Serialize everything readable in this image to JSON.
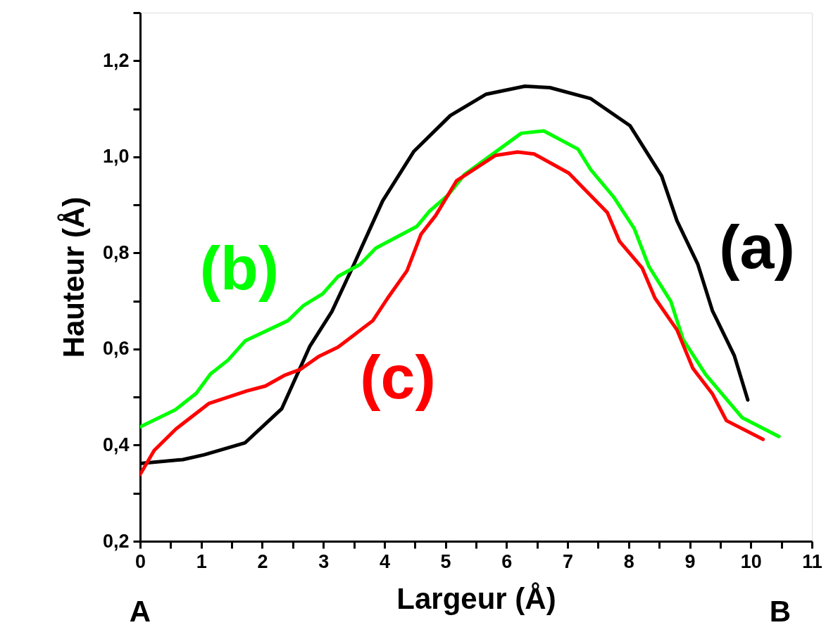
{
  "chart_data": {
    "type": "line",
    "xlabel": "Largeur (Å)",
    "ylabel": "Hauteur (Å)",
    "xlim": [
      0,
      11
    ],
    "ylim": [
      0.2,
      1.3
    ],
    "xticks": [
      0,
      {
        "value": 0.5,
        "label": null
      },
      1,
      {
        "value": 1.5,
        "label": null
      },
      2,
      {
        "value": 2.5,
        "label": null
      },
      3,
      {
        "value": 3.5,
        "label": null
      },
      4,
      {
        "value": 4.5,
        "label": null
      },
      5,
      {
        "value": 5.5,
        "label": null
      },
      6,
      {
        "value": 6.5,
        "label": null
      },
      7,
      {
        "value": 7.5,
        "label": null
      },
      8,
      {
        "value": 8.5,
        "label": null
      },
      9,
      {
        "value": 9.5,
        "label": null
      },
      10,
      {
        "value": 10.5,
        "label": null
      },
      11
    ],
    "yticks": [
      {
        "value": 0.2,
        "label": "0,2"
      },
      {
        "value": 0.3,
        "label": null
      },
      {
        "value": 0.4,
        "label": "0,4"
      },
      {
        "value": 0.5,
        "label": null
      },
      {
        "value": 0.6,
        "label": "0,6"
      },
      {
        "value": 0.7,
        "label": null
      },
      {
        "value": 0.8,
        "label": "0,8"
      },
      {
        "value": 0.9,
        "label": null
      },
      {
        "value": 1.0,
        "label": "1,0"
      },
      {
        "value": 1.1,
        "label": null
      },
      {
        "value": 1.2,
        "label": "1,2"
      },
      {
        "value": 1.3,
        "label": null
      }
    ],
    "grid": false,
    "legend": false,
    "marker": "none",
    "line_style": "solid",
    "annotations": [
      "A",
      "B"
    ],
    "series": [
      {
        "name": "(a)",
        "color": "#000000",
        "x": [
          0,
          0.7,
          1.05,
          1.72,
          2.32,
          2.78,
          3.14,
          3.5,
          3.97,
          4.48,
          5.08,
          5.66,
          6.3,
          6.71,
          7.38,
          8.02,
          8.54,
          8.79,
          9.13,
          9.37,
          9.73,
          9.95
        ],
        "values": [
          0.362,
          0.37,
          0.38,
          0.405,
          0.476,
          0.606,
          0.678,
          0.776,
          0.908,
          1.011,
          1.086,
          1.13,
          1.147,
          1.144,
          1.121,
          1.065,
          0.96,
          0.867,
          0.777,
          0.68,
          0.586,
          0.494
        ]
      },
      {
        "name": "(b)",
        "color": "#00ff00",
        "x": [
          0,
          0.57,
          0.92,
          1.15,
          1.44,
          1.72,
          2.42,
          2.68,
          2.99,
          3.24,
          3.6,
          3.86,
          4.53,
          4.74,
          5.04,
          5.31,
          6.24,
          6.61,
          7.17,
          7.38,
          7.75,
          8.09,
          8.33,
          8.69,
          8.89,
          9.26,
          9.86,
          10.46
        ],
        "values": [
          0.438,
          0.473,
          0.508,
          0.548,
          0.577,
          0.617,
          0.659,
          0.691,
          0.715,
          0.751,
          0.776,
          0.81,
          0.855,
          0.887,
          0.92,
          0.963,
          1.049,
          1.054,
          1.016,
          0.973,
          0.917,
          0.851,
          0.772,
          0.699,
          0.62,
          0.547,
          0.457,
          0.418
        ]
      },
      {
        "name": "(c)",
        "color": "#ff0000",
        "x": [
          0,
          0.23,
          0.59,
          1.13,
          1.75,
          2.05,
          2.36,
          2.63,
          2.93,
          3.24,
          3.51,
          3.81,
          4.07,
          4.37,
          4.6,
          4.84,
          5.18,
          5.82,
          6.18,
          6.45,
          7.02,
          7.65,
          7.85,
          8.22,
          8.43,
          8.79,
          9.05,
          9.37,
          9.6,
          10.2
        ],
        "values": [
          0.339,
          0.389,
          0.434,
          0.487,
          0.513,
          0.523,
          0.545,
          0.558,
          0.585,
          0.604,
          0.63,
          0.659,
          0.709,
          0.763,
          0.839,
          0.878,
          0.95,
          1.003,
          1.01,
          1.006,
          0.966,
          0.884,
          0.824,
          0.769,
          0.706,
          0.64,
          0.56,
          0.507,
          0.451,
          0.412
        ]
      }
    ]
  }
}
